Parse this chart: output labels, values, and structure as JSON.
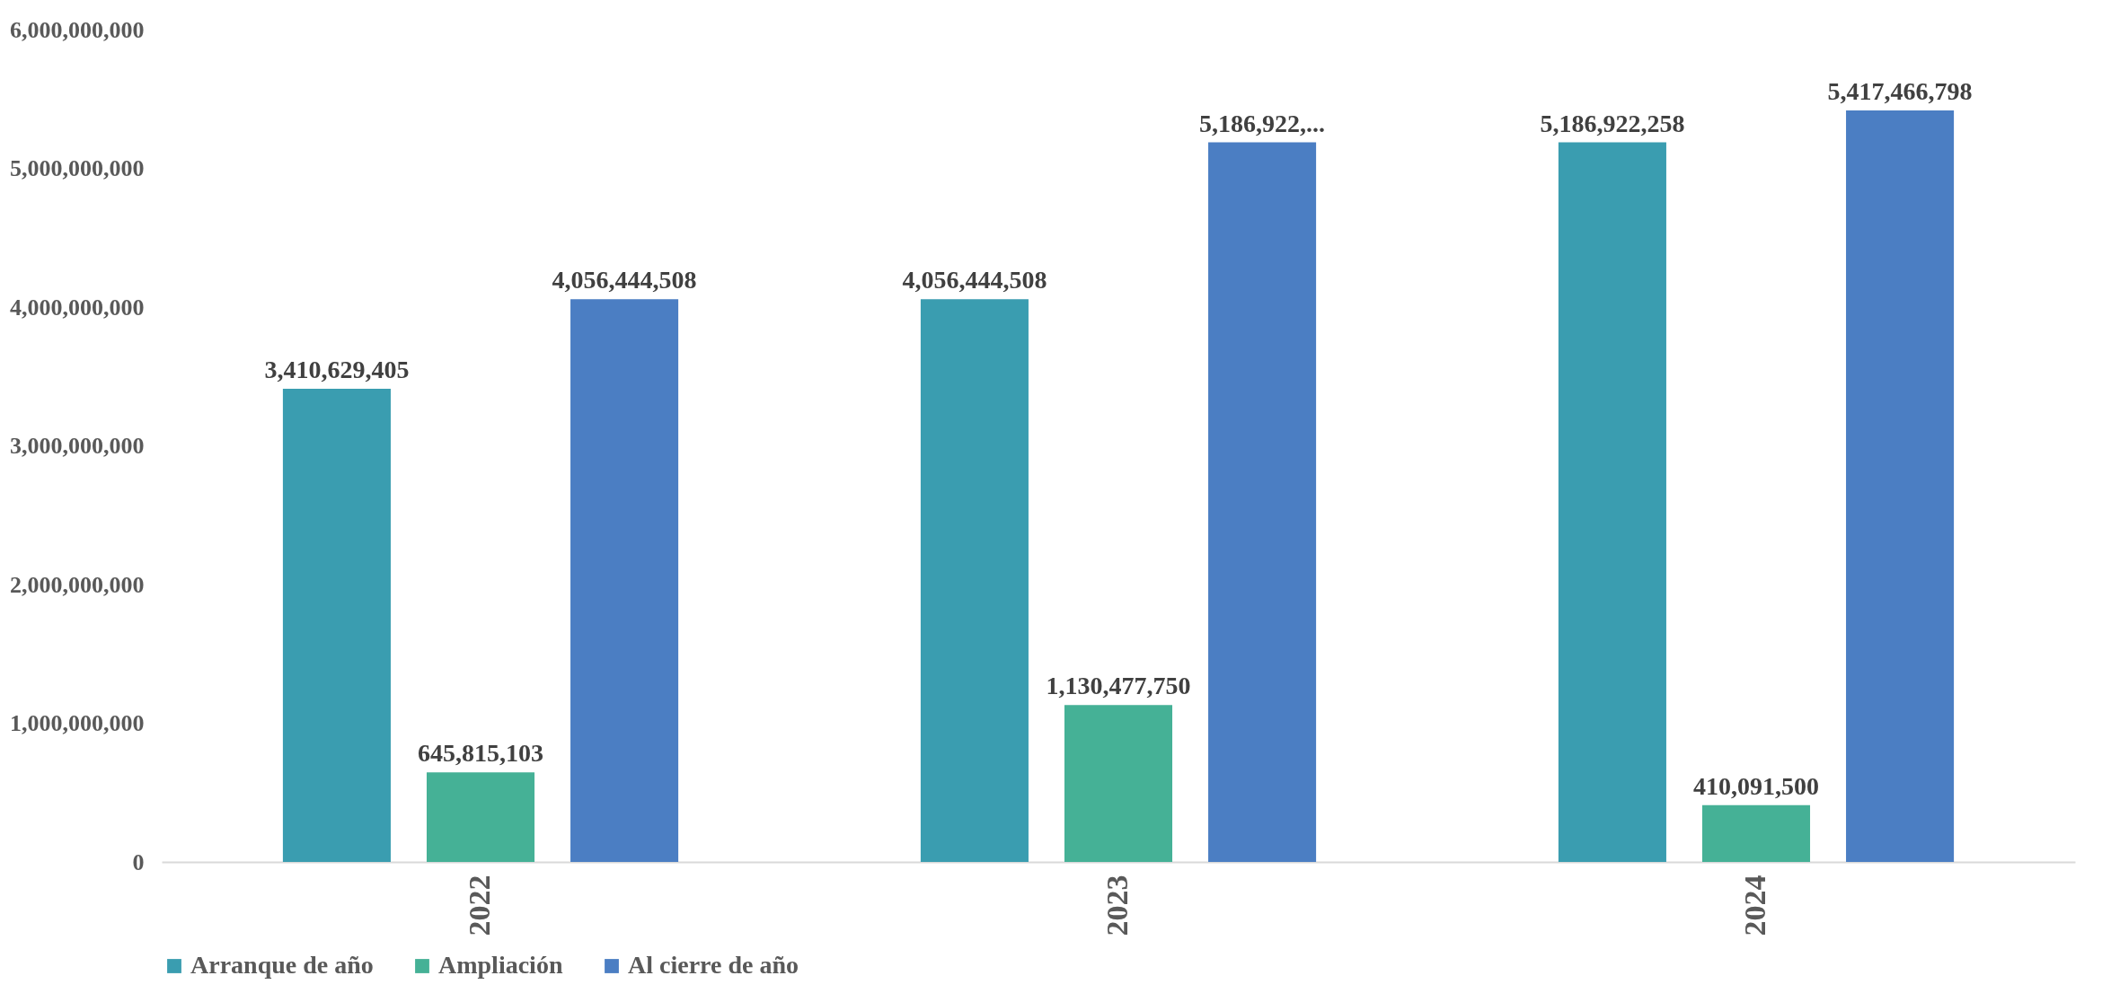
{
  "chart_data": {
    "type": "bar",
    "categories": [
      "2022",
      "2023",
      "2024"
    ],
    "series": [
      {
        "name": "Arranque de año",
        "color": "#3a9db0",
        "values": [
          3410629405,
          4056444508,
          5186922258
        ],
        "value_labels": [
          "3,410,629,405",
          "4,056,444,508",
          "5,186,922,258"
        ]
      },
      {
        "name": "Ampliación",
        "color": "#45b196",
        "values": [
          645815103,
          1130477750,
          410091500
        ],
        "value_labels": [
          "645,815,103",
          "1,130,477,750",
          "410,091,500"
        ]
      },
      {
        "name": "Al cierre de año",
        "color": "#4b7ec3",
        "values": [
          4056444508,
          5186922258,
          5417466798
        ],
        "value_labels": [
          "4,056,444,508",
          "5,186,922,...",
          "5,417,466,798"
        ]
      }
    ],
    "ylim": [
      0,
      6000000000
    ],
    "yticks": [
      {
        "value": 0,
        "label": "0"
      },
      {
        "value": 1000000000,
        "label": "1,000,000,000"
      },
      {
        "value": 2000000000,
        "label": "2,000,000,000"
      },
      {
        "value": 3000000000,
        "label": "3,000,000,000"
      },
      {
        "value": 4000000000,
        "label": "4,000,000,000"
      },
      {
        "value": 5000000000,
        "label": "5,000,000,000"
      },
      {
        "value": 6000000000,
        "label": "6,000,000,000"
      }
    ],
    "grid": false,
    "legend": "bottom"
  }
}
